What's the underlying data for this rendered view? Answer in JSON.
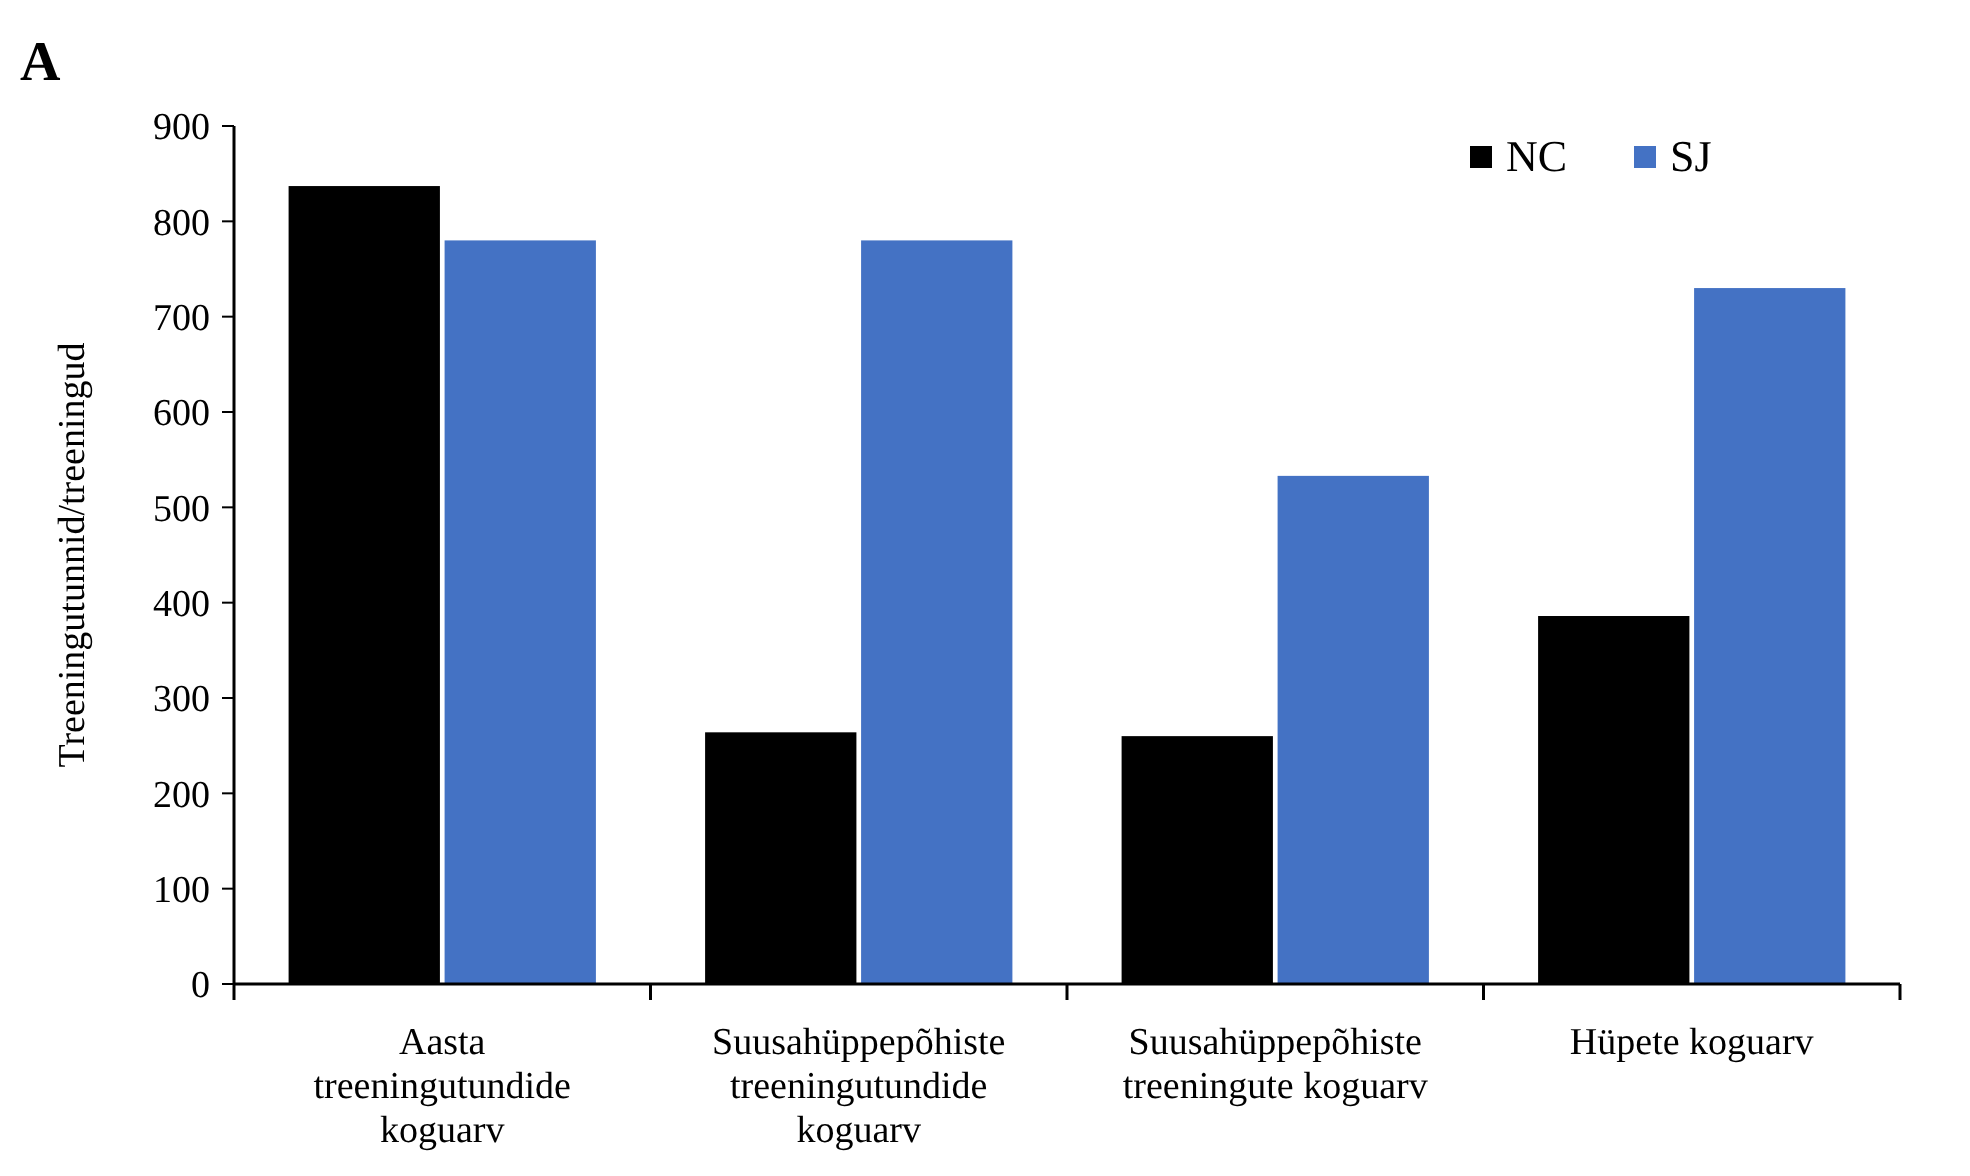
{
  "chart_data": {
    "type": "bar",
    "title": "A",
    "ylabel": "Treeningutunnid/treeningud",
    "categories": [
      "Aasta treeningutundide koguarv",
      "Suusahüppepõhiste treeningutundide koguarv",
      "Suusahüppepõhiste treeningute koguarv",
      "Hüpete koguarv"
    ],
    "series": [
      {
        "name": "NC",
        "color": "#000000",
        "values": [
          837,
          264,
          260,
          386
        ]
      },
      {
        "name": "SJ",
        "color": "#4472c4",
        "values": [
          780,
          780,
          533,
          730
        ]
      }
    ],
    "ylim": [
      0,
      900
    ],
    "yticks": [
      0,
      100,
      200,
      300,
      400,
      500,
      600,
      700,
      800,
      900
    ],
    "grid": false,
    "legend": "top right"
  }
}
